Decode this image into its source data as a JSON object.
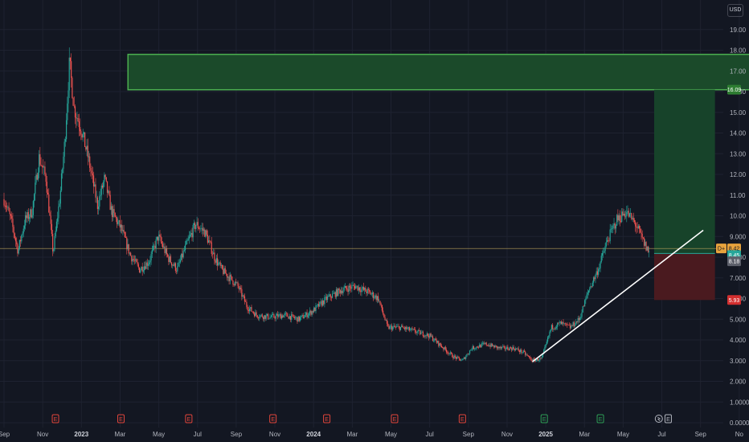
{
  "currency": "USD",
  "colors": {
    "background": "#131722",
    "up": "#26a69a",
    "down": "#ef5350",
    "grid": "#1e2230",
    "target_fill": "#1b4a2a",
    "target_stroke": "#4caf50",
    "stop_fill": "#4a1a1f",
    "current_price_line": "#b8a15a",
    "trendline": "#ffffff"
  },
  "chart_data": {
    "type": "candlestick",
    "ylim": [
      0,
      20
    ],
    "y_ticks": [
      "0.0000",
      "1.0000",
      "2.000",
      "3.000",
      "4.000",
      "5.000",
      "6.000",
      "7.000",
      "8.000",
      "9.000",
      "10.00",
      "11.00",
      "12.00",
      "13.00",
      "14.00",
      "15.00",
      "16.00",
      "17.00",
      "18.00",
      "19.00"
    ],
    "x_ticks": [
      {
        "label": "Sep",
        "bold": false
      },
      {
        "label": "Nov",
        "bold": false
      },
      {
        "label": "2023",
        "bold": true
      },
      {
        "label": "Mar",
        "bold": false
      },
      {
        "label": "May",
        "bold": false
      },
      {
        "label": "Jul",
        "bold": false
      },
      {
        "label": "Sep",
        "bold": false
      },
      {
        "label": "Nov",
        "bold": false
      },
      {
        "label": "2024",
        "bold": true
      },
      {
        "label": "Mar",
        "bold": false
      },
      {
        "label": "May",
        "bold": false
      },
      {
        "label": "Jul",
        "bold": false
      },
      {
        "label": "Sep",
        "bold": false
      },
      {
        "label": "Nov",
        "bold": false
      },
      {
        "label": "2025",
        "bold": true
      },
      {
        "label": "Mar",
        "bold": false
      },
      {
        "label": "May",
        "bold": false
      },
      {
        "label": "Jul",
        "bold": false
      },
      {
        "label": "Sep",
        "bold": false
      },
      {
        "label": "No",
        "bold": false
      }
    ],
    "price_path": [
      [
        0,
        10.8
      ],
      [
        0.03,
        9.8
      ],
      [
        0.06,
        8.3
      ],
      [
        0.09,
        9.8
      ],
      [
        0.12,
        10.2
      ],
      [
        0.15,
        12.8
      ],
      [
        0.18,
        11.8
      ],
      [
        0.21,
        8.2
      ],
      [
        0.24,
        11.0
      ],
      [
        0.26,
        13.6
      ],
      [
        0.28,
        17.4
      ],
      [
        0.3,
        15.2
      ],
      [
        0.33,
        14.2
      ],
      [
        0.36,
        12.8
      ],
      [
        0.4,
        10.5
      ],
      [
        0.43,
        11.8
      ],
      [
        0.46,
        10.2
      ],
      [
        0.5,
        9.4
      ],
      [
        0.54,
        8.1
      ],
      [
        0.58,
        7.4
      ],
      [
        0.62,
        7.8
      ],
      [
        0.66,
        9.0
      ],
      [
        0.7,
        8.0
      ],
      [
        0.74,
        7.4
      ],
      [
        0.78,
        8.6
      ],
      [
        0.82,
        9.6
      ],
      [
        0.86,
        9.2
      ],
      [
        0.9,
        8.0
      ],
      [
        0.93,
        7.4
      ],
      [
        1.0,
        6.6
      ],
      [
        1.04,
        5.6
      ],
      [
        1.08,
        5.2
      ],
      [
        1.14,
        5.1
      ],
      [
        1.2,
        5.2
      ],
      [
        1.26,
        5.0
      ],
      [
        1.32,
        5.4
      ],
      [
        1.38,
        6.0
      ],
      [
        1.44,
        6.4
      ],
      [
        1.5,
        6.6
      ],
      [
        1.56,
        6.3
      ],
      [
        1.6,
        6.0
      ],
      [
        1.64,
        4.6
      ],
      [
        1.7,
        4.6
      ],
      [
        1.76,
        4.4
      ],
      [
        1.82,
        4.2
      ],
      [
        1.88,
        3.6
      ],
      [
        1.92,
        3.2
      ],
      [
        1.96,
        3.0
      ],
      [
        2.0,
        3.6
      ],
      [
        2.06,
        3.8
      ],
      [
        2.12,
        3.6
      ],
      [
        2.18,
        3.6
      ],
      [
        2.22,
        3.4
      ],
      [
        2.26,
        3.0
      ],
      [
        2.3,
        3.1
      ],
      [
        2.34,
        4.6
      ],
      [
        2.38,
        4.8
      ],
      [
        2.42,
        4.6
      ],
      [
        2.46,
        5.0
      ],
      [
        2.5,
        6.4
      ],
      [
        2.54,
        7.4
      ],
      [
        2.58,
        8.8
      ],
      [
        2.62,
        9.8
      ],
      [
        2.66,
        10.2
      ],
      [
        2.7,
        9.6
      ],
      [
        2.74,
        8.6
      ],
      [
        2.76,
        8.2
      ]
    ],
    "trendline": {
      "from": {
        "t": 2.26,
        "price": 2.95
      },
      "to": {
        "t": 2.99,
        "price": 9.3
      }
    },
    "target_zone": {
      "top": 17.8,
      "bottom": 16.09,
      "from_t": 0.53,
      "to_t": 3.63
    },
    "position": {
      "entry": 8.18,
      "target": 16.09,
      "stop": 5.93,
      "from_t": 2.78,
      "to_t": 3.04
    },
    "current_price": 8.42,
    "price_labels": [
      {
        "key": "target",
        "text": "16.09",
        "price": 16.09,
        "bg": "#2e7d32",
        "fg": "#ffffff"
      },
      {
        "key": "current",
        "text": "8.42",
        "price": 8.42,
        "bg": "#e8a33d",
        "fg": "#131722",
        "prefix": "D+"
      },
      {
        "key": "mid",
        "text": "8.45",
        "price": 8.1,
        "bg": "#26a69a",
        "fg": "#ffffff"
      },
      {
        "key": "entry",
        "text": "8.18",
        "price": 7.8,
        "bg": "#5d606b",
        "fg": "#ffffff"
      },
      {
        "key": "stop",
        "text": "5.93",
        "price": 5.93,
        "bg": "#d32f2f",
        "fg": "#ffffff"
      }
    ],
    "events": [
      {
        "t": 0.22,
        "label": "E",
        "color": "#e0453b"
      },
      {
        "t": 0.5,
        "label": "E",
        "color": "#e0453b"
      },
      {
        "t": 0.79,
        "label": "E",
        "color": "#e0453b"
      },
      {
        "t": 1.15,
        "label": "E",
        "color": "#e0453b"
      },
      {
        "t": 1.38,
        "label": "E",
        "color": "#e0453b"
      },
      {
        "t": 1.67,
        "label": "E",
        "color": "#e0453b"
      },
      {
        "t": 1.96,
        "label": "E",
        "color": "#e0453b"
      },
      {
        "t": 2.31,
        "label": "E",
        "color": "#2e9e56"
      },
      {
        "t": 2.55,
        "label": "E",
        "color": "#2e9e56"
      },
      {
        "t": 2.8,
        "label": "",
        "color": "#b2b5be"
      },
      {
        "t": 2.84,
        "label": "E",
        "color": "#b2b5be"
      }
    ]
  }
}
